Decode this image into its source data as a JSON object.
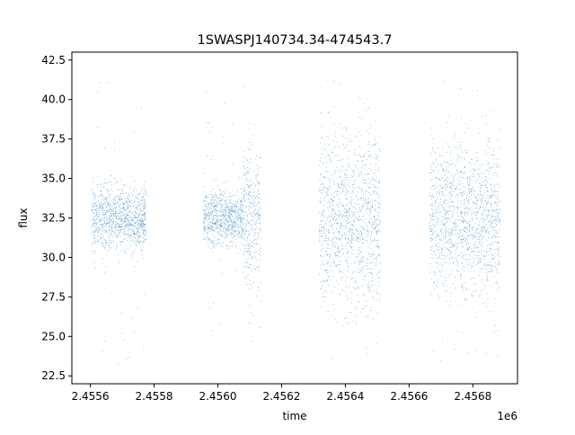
{
  "chart_data": {
    "type": "scatter",
    "title": "1SWASPJ140734.34-474543.7",
    "xlabel": "time",
    "ylabel": "flux",
    "x_offset_label": "1e6",
    "xlim": [
      2455542,
      2456940
    ],
    "ylim": [
      22.0,
      43.0
    ],
    "x_ticks": [
      2455600,
      2455800,
      2456000,
      2456200,
      2456400,
      2456600,
      2456800
    ],
    "x_tick_labels": [
      "2.4556",
      "2.4558",
      "2.4560",
      "2.4562",
      "2.4564",
      "2.4566",
      "2.4568"
    ],
    "y_ticks": [
      22.5,
      25.0,
      27.5,
      30.0,
      32.5,
      35.0,
      37.5,
      40.0,
      42.5
    ],
    "y_tick_labels": [
      "22.5",
      "25.0",
      "27.5",
      "30.0",
      "32.5",
      "35.0",
      "37.5",
      "40.0",
      "42.5"
    ],
    "grid": false,
    "marker_color": "#1f77b4",
    "observing_seasons": [
      {
        "x_start": 2455605,
        "x_end": 2455775,
        "flux_center": 32.5,
        "core_low": 30.5,
        "core_high": 34.5,
        "flux_min": 23.2,
        "flux_max": 41.4
      },
      {
        "x_start": 2455955,
        "x_end": 2456080,
        "flux_center": 32.5,
        "core_low": 30.8,
        "core_high": 34.2,
        "flux_min": 23.7,
        "flux_max": 41.4
      },
      {
        "x_start": 2456080,
        "x_end": 2456135,
        "flux_center": 32.5,
        "core_low": 28.0,
        "core_high": 37.0,
        "flux_min": 23.1,
        "flux_max": 41.4
      },
      {
        "x_start": 2456318,
        "x_end": 2456510,
        "flux_center": 32.5,
        "core_low": 27.0,
        "core_high": 37.5,
        "flux_min": 23.1,
        "flux_max": 42.0
      },
      {
        "x_start": 2456665,
        "x_end": 2456885,
        "flux_center": 32.5,
        "core_low": 28.0,
        "core_high": 37.0,
        "flux_min": 23.1,
        "flux_max": 41.9
      }
    ]
  }
}
